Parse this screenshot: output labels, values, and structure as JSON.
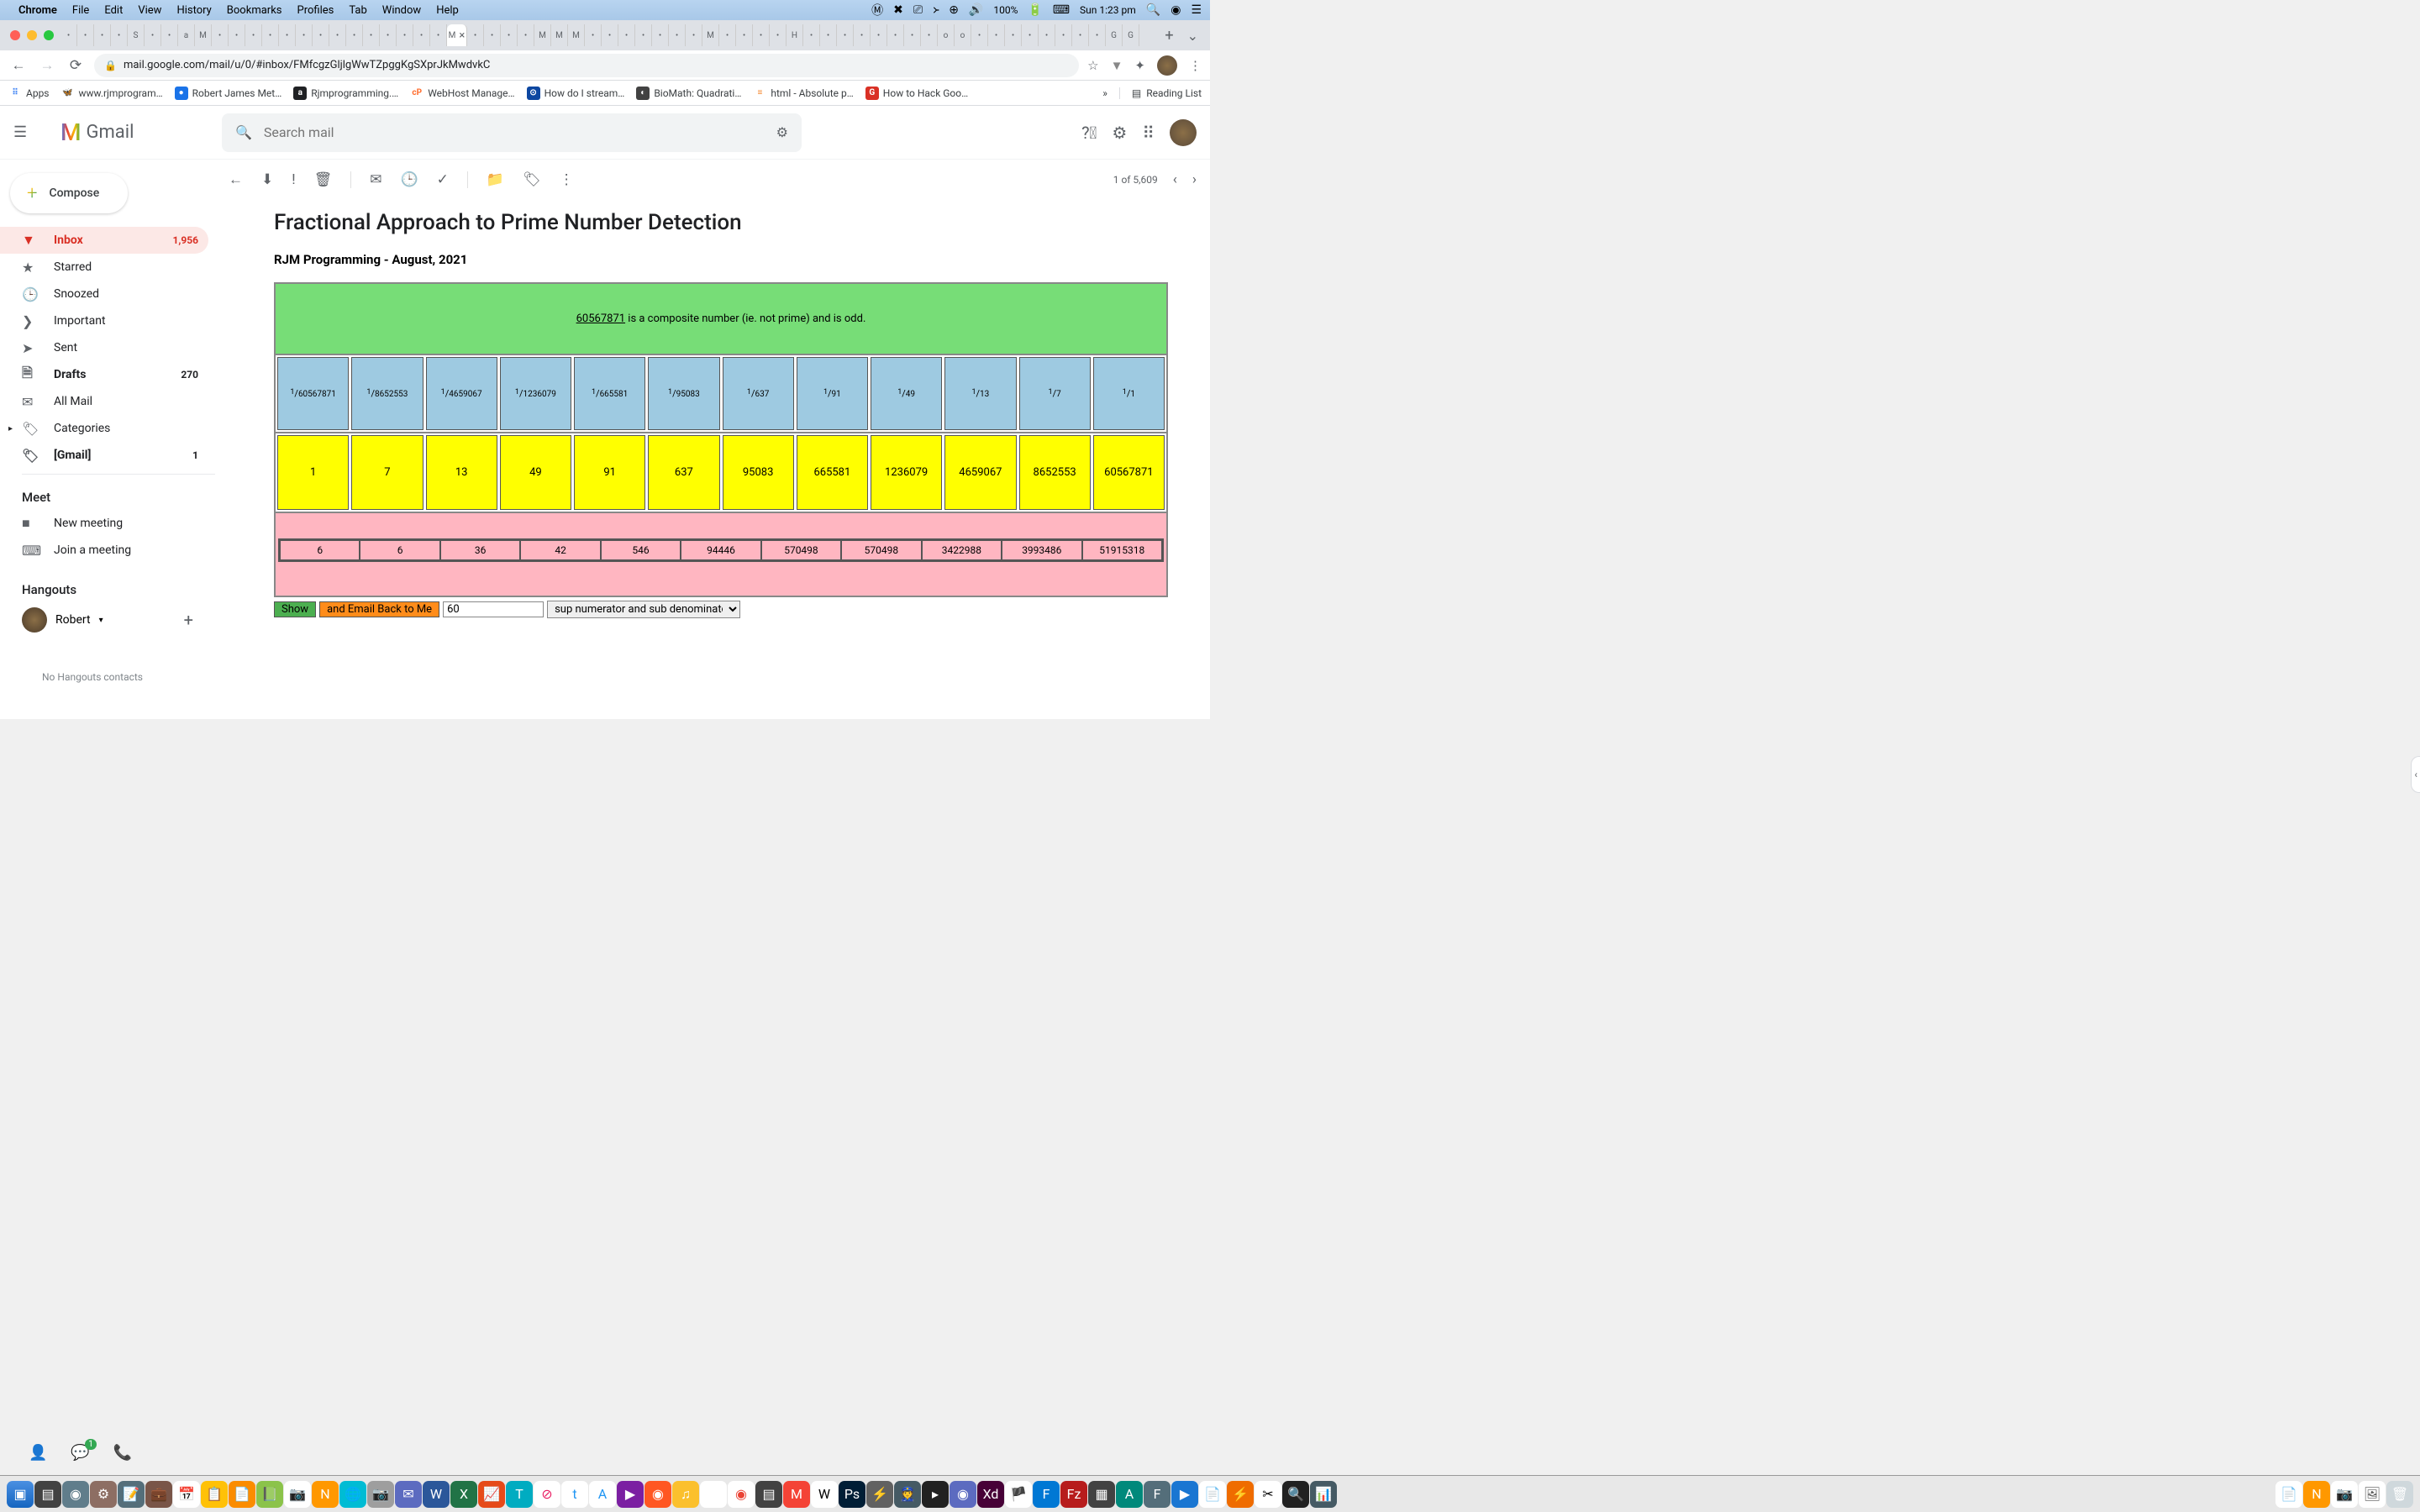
{
  "menubar": {
    "app": "Chrome",
    "items": [
      "File",
      "Edit",
      "View",
      "History",
      "Bookmarks",
      "Profiles",
      "Tab",
      "Window",
      "Help"
    ],
    "battery": "100%",
    "clock": "Sun 1:23 pm"
  },
  "toolbar": {
    "url": "mail.google.com/mail/u/0/#inbox/FMfcgzGljlgWwTZpggKgSXprJkMwdvkC"
  },
  "bookmarks": [
    {
      "label": "Apps",
      "color": "#ffffff",
      "txt": "⋮⋮⋮"
    },
    {
      "label": "www.rjmprogram…",
      "color": "#fff",
      "txt": "🦋"
    },
    {
      "label": "Robert James Met…",
      "color": "#1a73e8",
      "txt": "●"
    },
    {
      "label": "Rjmprogramming.…",
      "color": "#202124",
      "txt": "a"
    },
    {
      "label": "WebHost Manage…",
      "color": "#ff6c2c",
      "txt": "cP"
    },
    {
      "label": "How do I stream…",
      "color": "#0d47a1",
      "txt": "⊙"
    },
    {
      "label": "BioMath: Quadrati…",
      "color": "#424242",
      "txt": "◐"
    },
    {
      "label": "html - Absolute p…",
      "color": "#f48024",
      "txt": "≡"
    },
    {
      "label": "How to Hack Goo…",
      "color": "#d93025",
      "txt": "G"
    }
  ],
  "bookmarks_more": "»",
  "reading_list": "Reading List",
  "gmail": {
    "logo": "Gmail",
    "search_placeholder": "Search mail",
    "compose": "Compose",
    "sidebar": [
      {
        "icon": "▼",
        "label": "Inbox",
        "count": "1,956",
        "active": true,
        "bold": true,
        "name": "inbox"
      },
      {
        "icon": "★",
        "label": "Starred",
        "name": "starred"
      },
      {
        "icon": "🕒",
        "label": "Snoozed",
        "name": "snoozed"
      },
      {
        "icon": "❯",
        "label": "Important",
        "name": "important"
      },
      {
        "icon": "➤",
        "label": "Sent",
        "name": "sent"
      },
      {
        "icon": "🗎",
        "label": "Drafts",
        "count": "270",
        "bold": true,
        "name": "drafts"
      },
      {
        "icon": "✉",
        "label": "All Mail",
        "name": "allmail"
      },
      {
        "icon": "🏷",
        "label": "Categories",
        "has_caret": true,
        "name": "categories"
      },
      {
        "icon": "🏷",
        "label": "[Gmail]",
        "count": "1",
        "bold": true,
        "name": "gmail-label"
      }
    ],
    "meet_label": "Meet",
    "meet_items": [
      {
        "icon": "■",
        "label": "New meeting",
        "name": "new-meeting"
      },
      {
        "icon": "⌨",
        "label": "Join a meeting",
        "name": "join-meeting"
      }
    ],
    "hangouts_label": "Hangouts",
    "hangouts_user": "Robert",
    "no_contacts": "No Hangouts contacts",
    "pager": "1 of 5,609"
  },
  "email": {
    "subject": "Fractional Approach to Prime Number Detection",
    "subtitle": "RJM Programming - August, 2021",
    "banner_number": "60567871",
    "banner_text": " is a composite number (ie. not prime) and is odd.",
    "blue_row": [
      "60567871",
      "8652553",
      "4659067",
      "1236079",
      "665581",
      "95083",
      "637",
      "91",
      "49",
      "13",
      "7",
      "1"
    ],
    "yellow_row": [
      "1",
      "7",
      "13",
      "49",
      "91",
      "637",
      "95083",
      "665581",
      "1236079",
      "4659067",
      "8652553",
      "60567871"
    ],
    "pink_row": [
      "6",
      "6",
      "36",
      "42",
      "546",
      "94446",
      "570498",
      "570498",
      "3422988",
      "3993486",
      "51915318"
    ],
    "show_btn": "Show",
    "email_btn": "and Email Back to Me",
    "input_val": "60",
    "select_val": "sup numerator and sub denominator"
  },
  "colors": {
    "green": "#77dd77",
    "blue": "#9ecae1",
    "yellow": "#ffff00",
    "pink": "#ffb6c1"
  }
}
